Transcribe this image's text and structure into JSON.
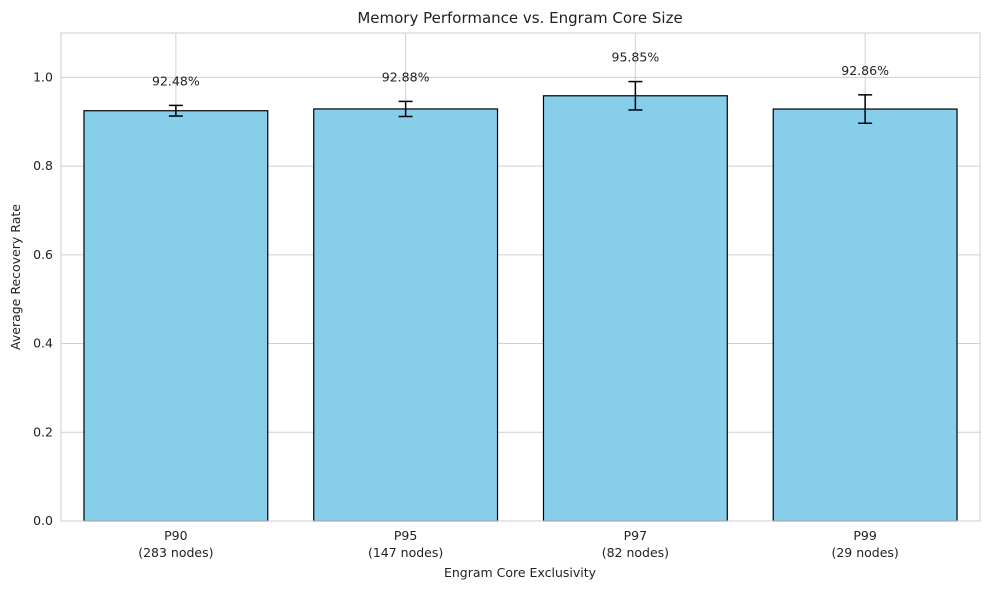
{
  "chart_data": {
    "type": "bar",
    "title": "Memory Performance vs. Engram Core Size",
    "xlabel": "Engram Core Exclusivity",
    "ylabel": "Average Recovery Rate",
    "categories": [
      [
        "P90",
        "(283 nodes)"
      ],
      [
        "P95",
        "(147 nodes)"
      ],
      [
        "P97",
        "(82 nodes)"
      ],
      [
        "P99",
        "(29 nodes)"
      ]
    ],
    "values": [
      0.9248,
      0.9288,
      0.9585,
      0.9286
    ],
    "error": [
      0.012,
      0.017,
      0.032,
      0.032
    ],
    "value_labels": [
      "92.48%",
      "92.88%",
      "95.85%",
      "92.86%"
    ],
    "ylim": [
      0,
      1.1
    ],
    "yticks": [
      0.0,
      0.2,
      0.4,
      0.6,
      0.8,
      1.0
    ],
    "ytick_labels": [
      "0.0",
      "0.2",
      "0.4",
      "0.6",
      "0.8",
      "1.0"
    ],
    "grid": true,
    "colors": {
      "bar_fill": "#87CEEB",
      "bar_edge": "#000000",
      "grid": "#d0d0d0",
      "axes_edge": "#cccccc",
      "text": "#222222"
    }
  }
}
